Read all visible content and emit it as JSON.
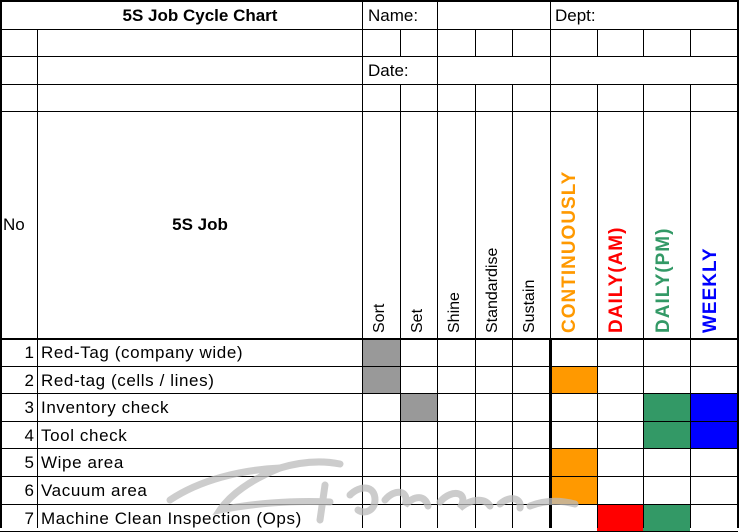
{
  "header": {
    "title": "5S Job Cycle Chart",
    "name_label": "Name:",
    "dept_label": "Dept:",
    "date_label": "Date:"
  },
  "columns": {
    "no": "No",
    "job": "5S Job",
    "s_steps": [
      "Sort",
      "Set",
      "Shine",
      "Standardise",
      "Sustain"
    ],
    "frequencies": [
      {
        "label": "CONTINUOUSLY",
        "color": "#ff9900"
      },
      {
        "label": "DAILY(AM)",
        "color": "#ff0000"
      },
      {
        "label": "DAILY(PM)",
        "color": "#339966"
      },
      {
        "label": "WEEKLY",
        "color": "#0000ff"
      }
    ]
  },
  "fill_colors": {
    "step": "#999999",
    "continuously": "#ff9900",
    "daily_am": "#ff0000",
    "daily_pm": "#339966",
    "weekly": "#0000ff"
  },
  "rows": [
    {
      "no": "1",
      "job": "Red-Tag (company wide)",
      "step": 0,
      "freq": []
    },
    {
      "no": "2",
      "job": "Red-tag (cells / lines)",
      "step": 0,
      "freq": [
        0
      ]
    },
    {
      "no": "3",
      "job": "Inventory check",
      "step": 1,
      "freq": [
        2,
        3
      ]
    },
    {
      "no": "4",
      "job": "Tool check",
      "step": -1,
      "freq": [
        2,
        3
      ]
    },
    {
      "no": "5",
      "job": "Wipe area",
      "step": -1,
      "freq": [
        0
      ]
    },
    {
      "no": "6",
      "job": "Vacuum area",
      "step": -1,
      "freq": [
        0
      ]
    },
    {
      "no": "7",
      "job": "Machine Clean Inspection (Ops)",
      "step": -1,
      "freq": [
        1,
        2
      ]
    }
  ]
}
